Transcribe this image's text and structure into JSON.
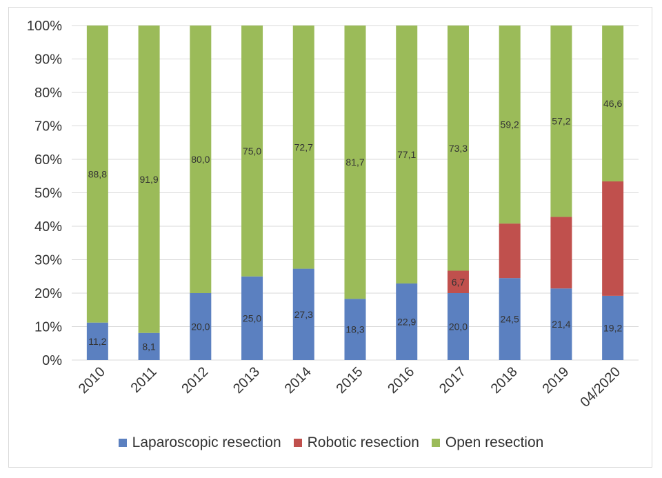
{
  "chart_data": {
    "type": "bar",
    "stacked": true,
    "percent_stacked": true,
    "categories": [
      "2010",
      "2011",
      "2012",
      "2013",
      "2014",
      "2015",
      "2016",
      "2017",
      "2018",
      "2019",
      "04/2020"
    ],
    "series": [
      {
        "name": "Laparoscopic resection",
        "color": "#5b80c0",
        "values": [
          11.2,
          8.1,
          20.0,
          25.0,
          27.3,
          18.3,
          22.9,
          20.0,
          24.5,
          21.4,
          19.2
        ],
        "labels": [
          "11,2",
          "8,1",
          "20,0",
          "25,0",
          "27,3",
          "18,3",
          "22,9",
          "20,0",
          "24,5",
          "21,4",
          "19,2"
        ]
      },
      {
        "name": "Robotic resection",
        "color": "#c0504d",
        "values": [
          0,
          0,
          0,
          0,
          0,
          0,
          0,
          6.7,
          16.3,
          21.4,
          34.2
        ],
        "labels": [
          "",
          "",
          "",
          "",
          "",
          "",
          "",
          "6,7",
          "",
          "",
          ""
        ]
      },
      {
        "name": "Open resection",
        "color": "#9bbb59",
        "values": [
          88.8,
          91.9,
          80.0,
          75.0,
          72.7,
          81.7,
          77.1,
          73.3,
          59.2,
          57.2,
          46.6
        ],
        "labels": [
          "88,8",
          "91,9",
          "80,0",
          "75,0",
          "72,7",
          "81,7",
          "77,1",
          "73,3",
          "59,2",
          "57,2",
          "46,6"
        ]
      }
    ],
    "yticks": [
      "0%",
      "10%",
      "20%",
      "30%",
      "40%",
      "50%",
      "60%",
      "70%",
      "80%",
      "90%",
      "100%"
    ],
    "ylim": [
      0,
      100
    ],
    "grid": true,
    "legend_position": "bottom",
    "title": "",
    "xlabel": "",
    "ylabel": ""
  }
}
